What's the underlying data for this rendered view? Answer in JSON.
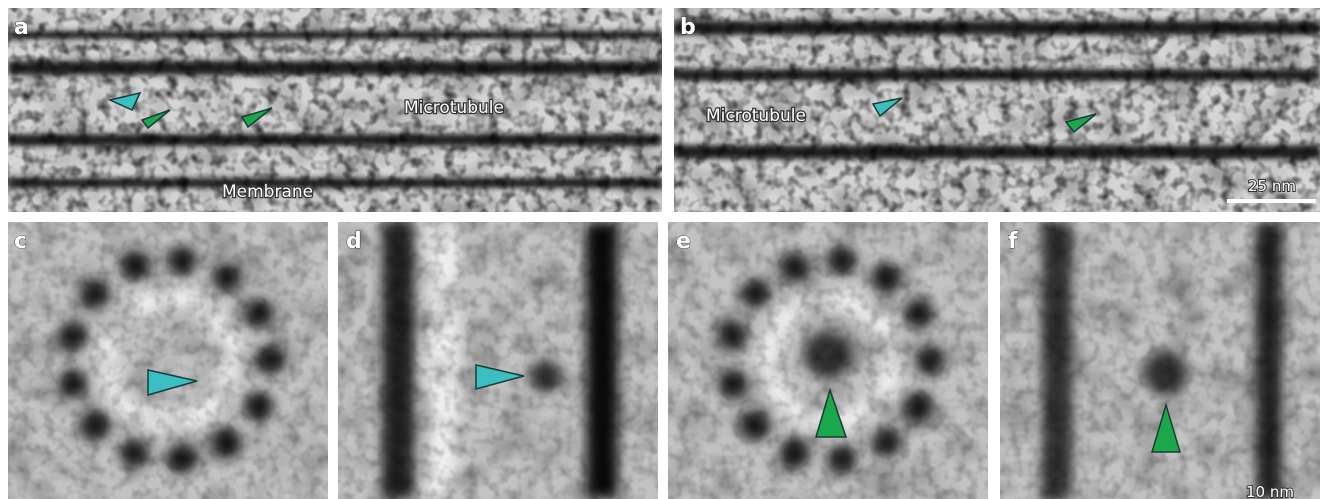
{
  "panels": [
    {
      "label": "a",
      "annotations": [
        "Microtubule",
        "Membrane"
      ]
    },
    {
      "label": "b",
      "annotations": [
        "Microtubule"
      ],
      "scale_bar": "25 nm"
    },
    {
      "label": "c"
    },
    {
      "label": "d"
    },
    {
      "label": "e"
    },
    {
      "label": "f",
      "scale_bar": "10 nm"
    }
  ]
}
